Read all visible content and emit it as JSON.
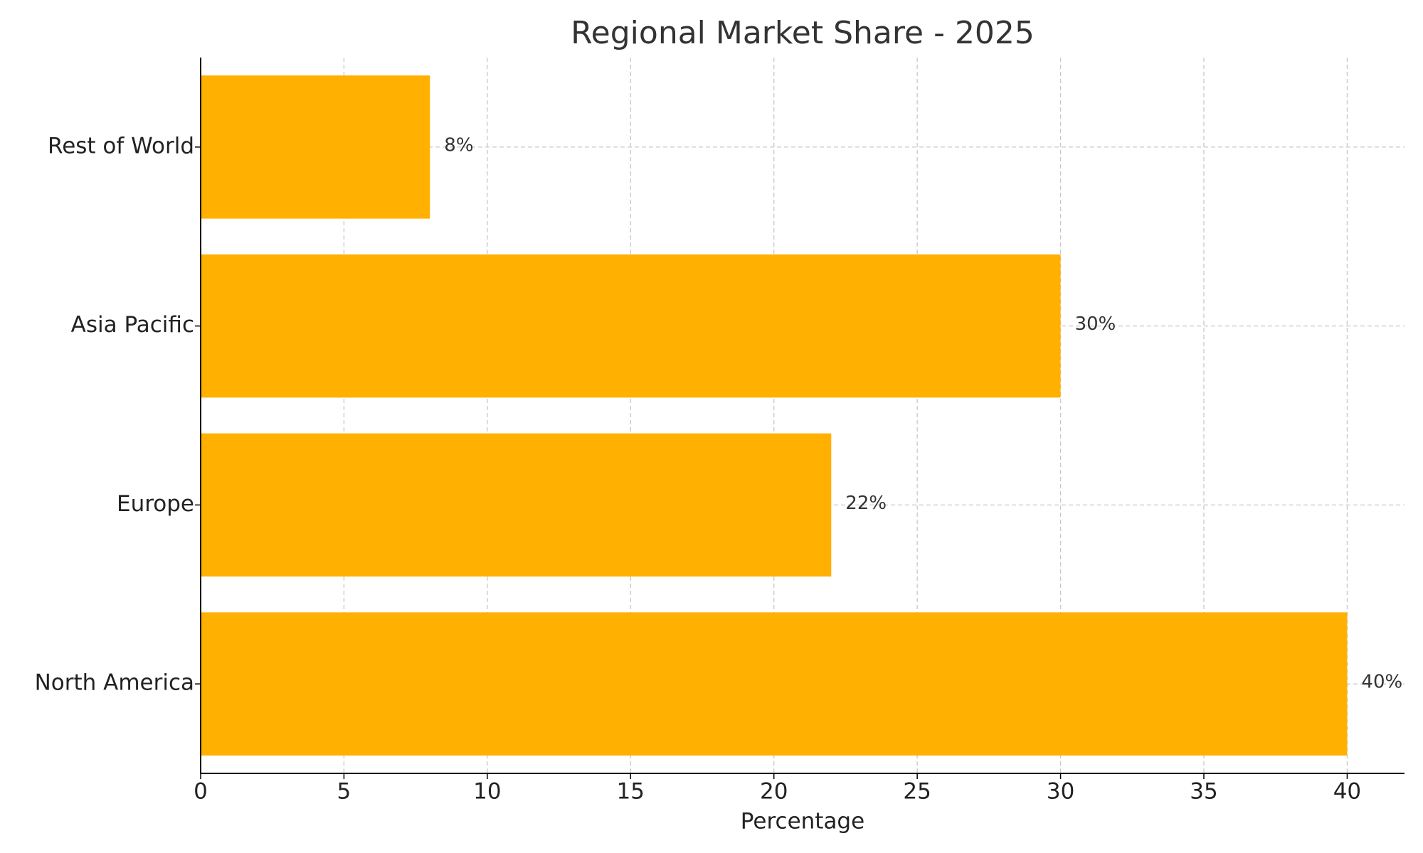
{
  "chart_data": {
    "type": "barh",
    "title": "Regional Market Share - 2025",
    "xlabel": "Percentage",
    "categories": [
      "North America",
      "Europe",
      "Asia Pacific",
      "Rest of World"
    ],
    "values": [
      40,
      22,
      30,
      8
    ],
    "value_labels": [
      "40%",
      "22%",
      "30%",
      "8%"
    ],
    "color": "#ffb000",
    "xlim": [
      0,
      42
    ],
    "xticks": [
      0,
      5,
      10,
      15,
      20,
      25,
      30,
      35,
      40
    ],
    "grid": true
  }
}
